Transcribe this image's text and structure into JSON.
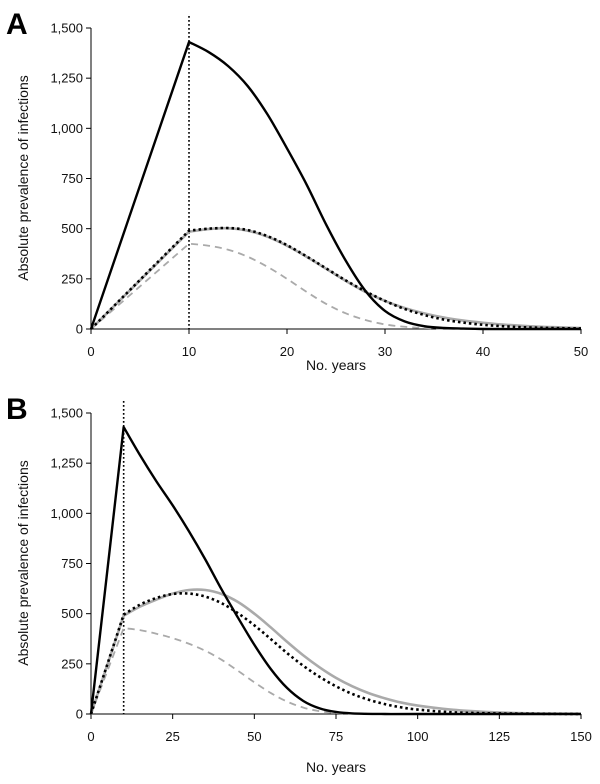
{
  "chart_data": [
    {
      "panel_label": "A",
      "type": "line",
      "xlabel": "No. years",
      "ylabel": "Absolute prevalence of infections",
      "xlim": [
        0,
        50
      ],
      "ylim": [
        0,
        1500
      ],
      "x_ticks": [
        0,
        10,
        20,
        30,
        40,
        50
      ],
      "y_ticks": [
        0,
        250,
        500,
        750,
        1000,
        1250,
        1500
      ],
      "x_tick_labels": [
        "0",
        "10",
        "20",
        "30",
        "40",
        "50"
      ],
      "y_tick_labels": [
        "0",
        "250",
        "500",
        "750",
        "1,000",
        "1,250",
        "1,500"
      ],
      "vline_x": 10,
      "series": [
        {
          "style": "black-solid",
          "color": "#000000",
          "x": [
            0,
            10,
            12,
            14,
            16,
            18,
            20,
            22,
            24,
            26,
            28,
            30,
            32,
            34,
            36,
            38,
            40,
            45,
            50
          ],
          "y": [
            0,
            1430,
            1380,
            1310,
            1210,
            1070,
            900,
            720,
            520,
            340,
            190,
            90,
            38,
            14,
            5,
            2,
            0,
            0,
            0
          ]
        },
        {
          "style": "gray-solid",
          "color": "#aaaaaa",
          "x": [
            0,
            10,
            12,
            14,
            16,
            18,
            20,
            22,
            24,
            26,
            28,
            30,
            32,
            34,
            36,
            38,
            40,
            42,
            44,
            46,
            48,
            50
          ],
          "y": [
            0,
            485,
            498,
            502,
            490,
            460,
            415,
            360,
            300,
            240,
            185,
            140,
            105,
            78,
            57,
            42,
            31,
            22,
            16,
            11,
            8,
            5
          ]
        },
        {
          "style": "black-dotted",
          "color": "#000000",
          "x": [
            0,
            10,
            12,
            14,
            16,
            18,
            20,
            22,
            24,
            26,
            28,
            30,
            32,
            34,
            36,
            38,
            40,
            42,
            44,
            46,
            48,
            50
          ],
          "y": [
            0,
            490,
            500,
            503,
            493,
            463,
            418,
            362,
            302,
            242,
            188,
            140,
            100,
            70,
            47,
            32,
            21,
            14,
            9,
            6,
            4,
            3
          ]
        },
        {
          "style": "gray-dashed",
          "color": "#aaaaaa",
          "x": [
            0,
            10,
            12,
            14,
            16,
            18,
            20,
            22,
            24,
            26,
            28,
            30,
            32,
            34,
            36,
            40,
            45,
            50
          ],
          "y": [
            0,
            425,
            415,
            395,
            360,
            310,
            250,
            185,
            125,
            78,
            45,
            23,
            11,
            5,
            2,
            0,
            0,
            0
          ]
        }
      ]
    },
    {
      "panel_label": "B",
      "type": "line",
      "xlabel": "No. years",
      "ylabel": "Absolute prevalence of infections",
      "xlim": [
        0,
        150
      ],
      "ylim": [
        0,
        1500
      ],
      "x_ticks": [
        0,
        25,
        50,
        75,
        100,
        125,
        150
      ],
      "y_ticks": [
        0,
        250,
        500,
        750,
        1000,
        1250,
        1500
      ],
      "x_tick_labels": [
        "0",
        "25",
        "50",
        "75",
        "100",
        "125",
        "150"
      ],
      "y_tick_labels": [
        "0",
        "250",
        "500",
        "750",
        "1,000",
        "1,250",
        "1,500"
      ],
      "vline_x": 10,
      "series": [
        {
          "style": "black-solid",
          "color": "#000000",
          "x": [
            0,
            10,
            15,
            20,
            25,
            30,
            35,
            40,
            45,
            50,
            55,
            60,
            65,
            70,
            75,
            80,
            90,
            100,
            150
          ],
          "y": [
            0,
            1430,
            1290,
            1160,
            1040,
            910,
            770,
            620,
            480,
            345,
            225,
            130,
            65,
            28,
            10,
            3,
            0,
            0,
            0
          ]
        },
        {
          "style": "gray-solid",
          "color": "#aaaaaa",
          "x": [
            0,
            10,
            15,
            20,
            25,
            30,
            35,
            40,
            45,
            50,
            55,
            60,
            65,
            70,
            75,
            80,
            85,
            90,
            95,
            100,
            110,
            120,
            130,
            140,
            150
          ],
          "y": [
            0,
            490,
            535,
            570,
            600,
            618,
            618,
            598,
            558,
            500,
            432,
            360,
            292,
            232,
            180,
            138,
            104,
            78,
            57,
            42,
            22,
            11,
            5,
            2,
            1
          ]
        },
        {
          "style": "black-dotted",
          "color": "#000000",
          "x": [
            0,
            10,
            15,
            20,
            25,
            30,
            35,
            40,
            45,
            50,
            55,
            60,
            65,
            70,
            75,
            80,
            85,
            90,
            95,
            100,
            110,
            120,
            130,
            140,
            150
          ],
          "y": [
            0,
            495,
            545,
            578,
            598,
            600,
            585,
            552,
            502,
            442,
            374,
            304,
            240,
            185,
            138,
            100,
            71,
            49,
            33,
            22,
            9,
            4,
            2,
            1,
            0
          ]
        },
        {
          "style": "gray-dashed",
          "color": "#aaaaaa",
          "x": [
            0,
            10,
            15,
            20,
            25,
            30,
            35,
            40,
            45,
            50,
            55,
            60,
            65,
            70,
            75,
            80,
            90,
            100,
            150
          ],
          "y": [
            0,
            428,
            418,
            400,
            378,
            350,
            315,
            270,
            215,
            158,
            105,
            62,
            32,
            14,
            5,
            2,
            0,
            0,
            0
          ]
        }
      ]
    }
  ]
}
